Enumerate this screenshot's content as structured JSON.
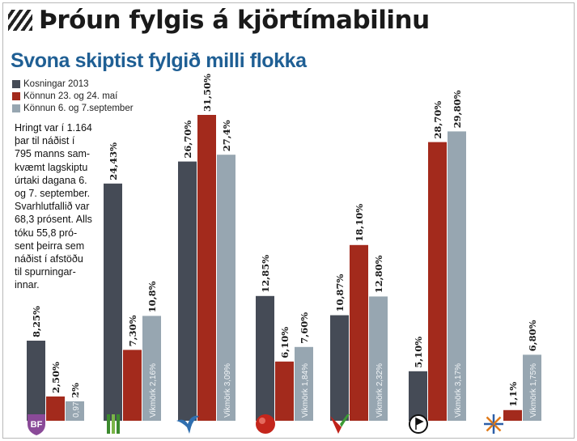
{
  "header": {
    "title": "Þróun fylgis á kjörtímabilinu",
    "subtitle": "Svona skiptist fylgið milli flokka"
  },
  "note": "Hringt var í 1.164\nþar til náðist í\n795 manns sam-\nkvæmt lagskiptu\núrtaki dagana 6.\nog 7. september.\nSvarhlutfallið var\n68,3 prósent. Alls\ntóku 55,8 pró-\nsent þeirra sem\nnáðist í afstöðu\ntil spurningar-\ninnar.",
  "colors": {
    "dark": "#454b56",
    "red": "#a32a1c",
    "light": "#97a6b1"
  },
  "chart_data": {
    "type": "bar",
    "ylim": [
      0,
      35
    ],
    "series": [
      {
        "name": "Kosningar 2013",
        "color": "#454b56"
      },
      {
        "name": "Könnun 23. og 24. maí",
        "color": "#a32a1c"
      },
      {
        "name": "Könnun 6. og 7.september",
        "color": "#97a6b1"
      }
    ],
    "groups": [
      {
        "party_icon": "bf-shield-icon",
        "logo_text": "BF",
        "values": [
          8.25,
          2.5,
          2
        ],
        "labels": [
          "8,25%",
          "2,50%",
          "2%"
        ],
        "margin": "0,97%"
      },
      {
        "party_icon": "green-bars-icon",
        "logo_text": "",
        "values": [
          24.43,
          7.3,
          10.8
        ],
        "labels": [
          "24,43%",
          "7,30%",
          "10,8%"
        ],
        "margin": "Vikmörk 2,16%"
      },
      {
        "party_icon": "falcon-icon",
        "logo_text": "",
        "values": [
          26.7,
          31.5,
          27.4
        ],
        "labels": [
          "26,70%",
          "31,50%",
          "27,4%"
        ],
        "margin": "Vikmörk 3,09%"
      },
      {
        "party_icon": "red-ball-icon",
        "logo_text": "",
        "values": [
          12.85,
          6.1,
          7.6
        ],
        "labels": [
          "12,85%",
          "6,10%",
          "7,60%"
        ],
        "margin": "Vikmörk 1,84%"
      },
      {
        "party_icon": "green-red-v-icon",
        "logo_text": "",
        "values": [
          10.87,
          18.1,
          12.8
        ],
        "labels": [
          "10,87%",
          "18,10%",
          "12,80%"
        ],
        "margin": "Vikmörk 2,32%"
      },
      {
        "party_icon": "pirate-flag-icon",
        "logo_text": "",
        "values": [
          5.1,
          28.7,
          29.8
        ],
        "labels": [
          "5,10%",
          "28,70%",
          "29,80%"
        ],
        "margin": "Vikmörk 3,17%"
      },
      {
        "party_icon": "star-icon",
        "logo_text": "",
        "values": [
          null,
          1.1,
          6.8
        ],
        "labels": [
          "",
          "1,1%",
          "6,80%"
        ],
        "margin": "Vikmörk 1,75%"
      }
    ]
  }
}
